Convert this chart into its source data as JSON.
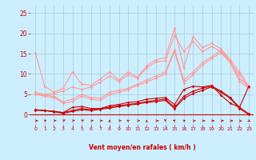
{
  "background_color": "#cceeff",
  "grid_color": "#aacccc",
  "xlabel": "Vent moyen/en rafales ( km/h )",
  "xlabel_color": "#cc0000",
  "xlim": [
    -0.5,
    23.5
  ],
  "ylim": [
    -2.5,
    27
  ],
  "yticks": [
    0,
    5,
    10,
    15,
    20,
    25
  ],
  "xticks": [
    0,
    1,
    2,
    3,
    4,
    5,
    6,
    7,
    8,
    9,
    10,
    11,
    12,
    13,
    14,
    15,
    16,
    17,
    18,
    19,
    20,
    21,
    22,
    23
  ],
  "line_color_dark": "#cc0000",
  "line_color_light": "#ff9999",
  "lines_light": [
    {
      "x": [
        0,
        1,
        2,
        3,
        4,
        5,
        6,
        7,
        8,
        9,
        10,
        11,
        12,
        13,
        14,
        15,
        16,
        17,
        18,
        19,
        20,
        21,
        22,
        23
      ],
      "y": [
        15.2,
        7.0,
        5.5,
        6.5,
        10.5,
        7.5,
        7.2,
        8.8,
        10.5,
        8.5,
        10.5,
        9.2,
        12.0,
        13.5,
        14.0,
        21.2,
        11.5,
        19.2,
        16.5,
        17.5,
        16.2,
        13.5,
        10.5,
        7.0
      ]
    },
    {
      "x": [
        0,
        1,
        2,
        3,
        4,
        5,
        6,
        7,
        8,
        9,
        10,
        11,
        12,
        13,
        14,
        15,
        16,
        17,
        18,
        19,
        20,
        21,
        22,
        23
      ],
      "y": [
        5.5,
        5.0,
        5.2,
        5.8,
        6.8,
        6.2,
        6.8,
        8.0,
        9.5,
        8.2,
        9.8,
        9.0,
        11.5,
        13.0,
        13.2,
        19.5,
        15.5,
        18.0,
        15.5,
        16.8,
        15.5,
        12.8,
        9.8,
        6.5
      ]
    },
    {
      "x": [
        0,
        1,
        2,
        3,
        4,
        5,
        6,
        7,
        8,
        9,
        10,
        11,
        12,
        13,
        14,
        15,
        16,
        17,
        18,
        19,
        20,
        21,
        22,
        23
      ],
      "y": [
        5.2,
        4.8,
        4.5,
        3.2,
        3.8,
        5.0,
        4.2,
        4.0,
        5.5,
        6.0,
        6.5,
        7.5,
        8.5,
        9.5,
        10.5,
        16.0,
        8.5,
        10.5,
        12.8,
        14.2,
        15.8,
        13.2,
        8.8,
        7.0
      ]
    },
    {
      "x": [
        0,
        1,
        2,
        3,
        4,
        5,
        6,
        7,
        8,
        9,
        10,
        11,
        12,
        13,
        14,
        15,
        16,
        17,
        18,
        19,
        20,
        21,
        22,
        23
      ],
      "y": [
        5.0,
        4.5,
        4.2,
        2.8,
        3.2,
        4.5,
        3.8,
        3.5,
        5.0,
        5.5,
        6.2,
        7.2,
        8.0,
        9.0,
        10.0,
        15.5,
        7.8,
        9.8,
        12.2,
        13.8,
        15.2,
        12.8,
        8.2,
        6.5
      ]
    }
  ],
  "lines_dark": [
    {
      "x": [
        0,
        1,
        2,
        3,
        4,
        5,
        6,
        7,
        8,
        9,
        10,
        11,
        12,
        13,
        14,
        15,
        16,
        17,
        18,
        19,
        20,
        21,
        22,
        23
      ],
      "y": [
        1.2,
        1.0,
        0.8,
        0.5,
        1.0,
        1.5,
        1.2,
        1.5,
        1.8,
        2.2,
        2.5,
        2.8,
        3.2,
        3.5,
        3.8,
        1.8,
        4.5,
        5.8,
        6.5,
        7.0,
        5.8,
        4.2,
        1.8,
        0.2
      ]
    },
    {
      "x": [
        0,
        1,
        2,
        3,
        4,
        5,
        6,
        7,
        8,
        9,
        10,
        11,
        12,
        13,
        14,
        15,
        16,
        17,
        18,
        19,
        20,
        21,
        22,
        23
      ],
      "y": [
        1.1,
        1.0,
        0.7,
        0.3,
        0.8,
        1.2,
        1.0,
        1.3,
        1.6,
        2.0,
        2.3,
        2.6,
        3.0,
        3.2,
        3.5,
        1.5,
        4.0,
        5.2,
        6.0,
        6.8,
        5.5,
        4.0,
        1.5,
        0.0
      ]
    },
    {
      "x": [
        0,
        1,
        2,
        3,
        4,
        5,
        6,
        7,
        8,
        9,
        10,
        11,
        12,
        13,
        14,
        15,
        16,
        17,
        18,
        19,
        20,
        21,
        22,
        23
      ],
      "y": [
        1.2,
        1.0,
        0.8,
        0.5,
        1.8,
        2.0,
        1.5,
        1.5,
        2.2,
        2.5,
        3.0,
        3.2,
        3.8,
        4.0,
        4.2,
        2.5,
        6.2,
        7.0,
        6.8,
        7.2,
        4.8,
        2.8,
        1.8,
        7.0
      ]
    }
  ],
  "wind_dir_y": -1.5,
  "wind_dirs": [
    [
      0.3,
      0.0
    ],
    [
      0.25,
      0.2
    ],
    [
      0.3,
      0.1
    ],
    [
      0.25,
      0.25
    ],
    [
      0.28,
      0.15
    ],
    [
      0.25,
      0.22
    ],
    [
      0.3,
      0.08
    ],
    [
      0.28,
      0.08
    ],
    [
      0.0,
      0.32
    ],
    [
      0.3,
      0.08
    ],
    [
      -0.18,
      0.28
    ],
    [
      0.3,
      0.05
    ],
    [
      0.02,
      0.32
    ],
    [
      0.3,
      0.0
    ],
    [
      0.0,
      -0.32
    ],
    [
      -0.22,
      0.22
    ],
    [
      0.22,
      0.22
    ],
    [
      0.3,
      0.02
    ],
    [
      0.3,
      0.0
    ],
    [
      0.3,
      0.0
    ],
    [
      0.3,
      0.0
    ],
    [
      0.3,
      0.0
    ],
    [
      0.28,
      -0.15
    ],
    [
      0.2,
      -0.25
    ]
  ]
}
